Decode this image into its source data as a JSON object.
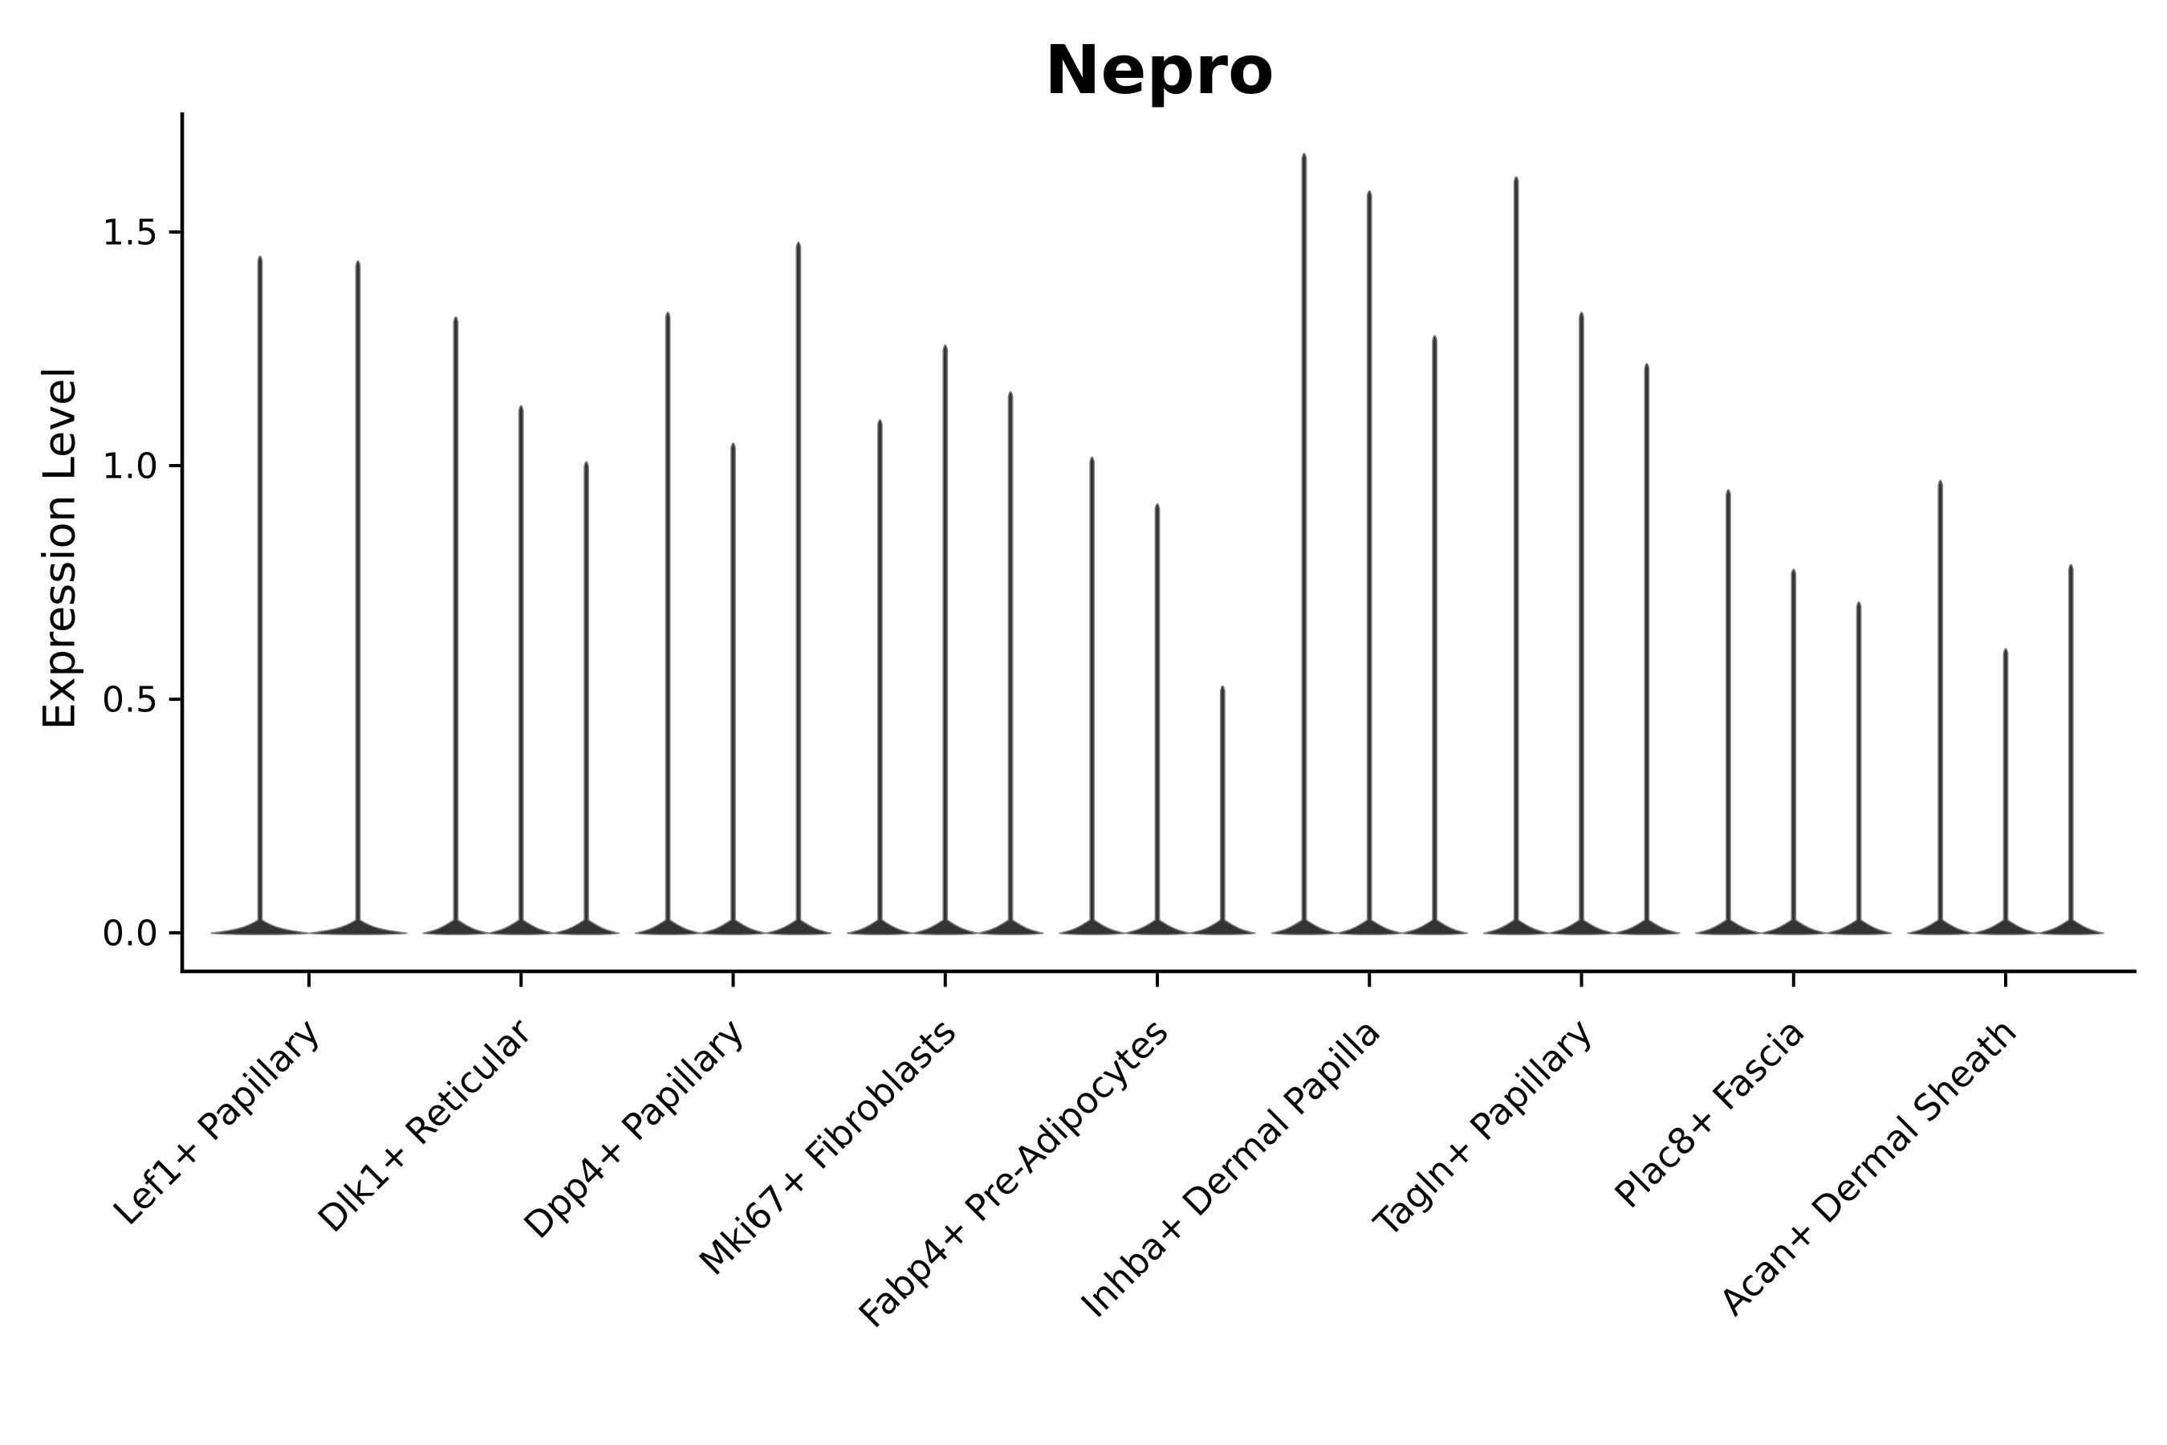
{
  "colors": {
    "violin": "#333333",
    "violin_fringe": "#7d7d7d",
    "axis": "#000000",
    "text": "#000000"
  },
  "chart_data": {
    "type": "violin",
    "title": "Nepro",
    "xlabel": "",
    "ylabel": "Expression Level",
    "ylim": [
      -0.08,
      1.76
    ],
    "grid": false,
    "legend": "none",
    "ytick_labels": [
      "0.0",
      "0.5",
      "1.0",
      "1.5"
    ],
    "ytick_values": [
      0.0,
      0.5,
      1.0,
      1.5
    ],
    "categories": [
      "Lef1+ Papillary",
      "Dlk1+ Reticular",
      "Dpp4+ Papillary",
      "Mki67+ Fibroblasts",
      "Fabp4+ Pre-Adipocytes",
      "Inhba+ Dermal Papilla",
      "Tagln+ Papillary",
      "Plac8+ Fascia",
      "Acan+ Dermal Sheath"
    ],
    "series": [
      {
        "category": "Lef1+ Papillary",
        "violin_peaks": [
          1.45,
          1.44
        ],
        "violin_min": 0
      },
      {
        "category": "Dlk1+ Reticular",
        "violin_peaks": [
          1.32,
          1.13,
          1.01
        ],
        "violin_min": 0
      },
      {
        "category": "Dpp4+ Papillary",
        "violin_peaks": [
          1.33,
          1.05,
          1.48
        ],
        "violin_min": 0
      },
      {
        "category": "Mki67+ Fibroblasts",
        "violin_peaks": [
          1.1,
          1.26,
          1.16
        ],
        "violin_min": 0
      },
      {
        "category": "Fabp4+ Pre-Adipocytes",
        "violin_peaks": [
          1.02,
          0.92,
          0.53
        ],
        "violin_min": 0
      },
      {
        "category": "Inhba+ Dermal Papilla",
        "violin_peaks": [
          1.67,
          1.59,
          1.28
        ],
        "violin_min": 0
      },
      {
        "category": "Tagln+ Papillary",
        "violin_peaks": [
          1.62,
          1.33,
          1.22
        ],
        "violin_min": 0
      },
      {
        "category": "Plac8+ Fascia",
        "violin_peaks": [
          0.95,
          0.78,
          0.71
        ],
        "violin_min": 0
      },
      {
        "category": "Acan+ Dermal Sheath",
        "violin_peaks": [
          0.97,
          0.61,
          0.79
        ],
        "violin_min": 0
      }
    ]
  }
}
